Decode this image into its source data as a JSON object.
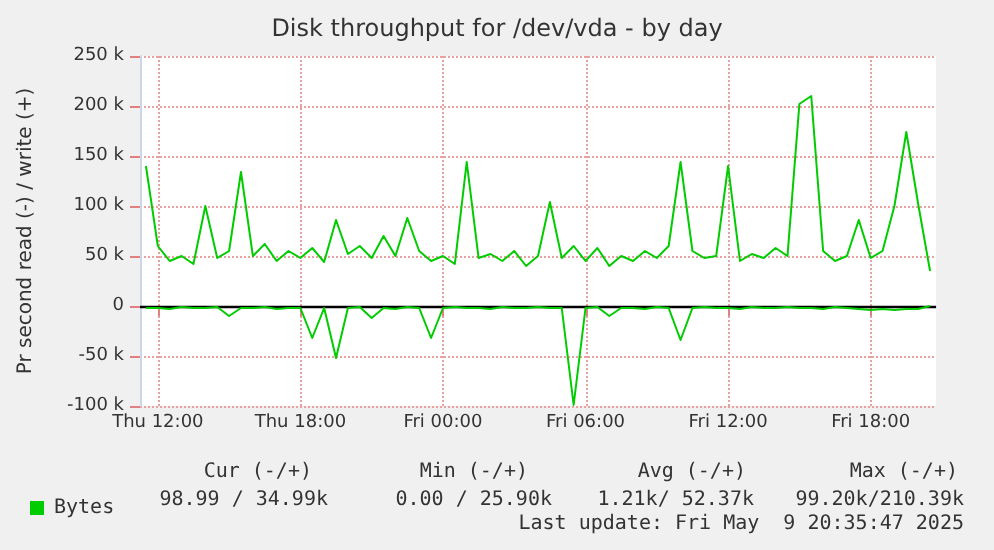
{
  "chart_data": {
    "type": "line",
    "title": "Disk throughput for /dev/vda - by day",
    "ylabel": "Pr second read (-) / write (+)",
    "x": [
      "2025-05-08T11:30",
      "2025-05-08T12:00",
      "2025-05-08T12:30",
      "2025-05-08T13:00",
      "2025-05-08T13:30",
      "2025-05-08T14:00",
      "2025-05-08T14:30",
      "2025-05-08T15:00",
      "2025-05-08T15:30",
      "2025-05-08T16:00",
      "2025-05-08T16:30",
      "2025-05-08T17:00",
      "2025-05-08T17:30",
      "2025-05-08T18:00",
      "2025-05-08T18:30",
      "2025-05-08T19:00",
      "2025-05-08T19:30",
      "2025-05-08T20:00",
      "2025-05-08T20:30",
      "2025-05-08T21:00",
      "2025-05-08T21:30",
      "2025-05-08T22:00",
      "2025-05-08T22:30",
      "2025-05-08T23:00",
      "2025-05-08T23:30",
      "2025-05-09T00:00",
      "2025-05-09T00:30",
      "2025-05-09T01:00",
      "2025-05-09T01:30",
      "2025-05-09T02:00",
      "2025-05-09T02:30",
      "2025-05-09T03:00",
      "2025-05-09T03:30",
      "2025-05-09T04:00",
      "2025-05-09T04:30",
      "2025-05-09T05:00",
      "2025-05-09T05:30",
      "2025-05-09T06:00",
      "2025-05-09T06:30",
      "2025-05-09T07:00",
      "2025-05-09T07:30",
      "2025-05-09T08:00",
      "2025-05-09T08:30",
      "2025-05-09T09:00",
      "2025-05-09T09:30",
      "2025-05-09T10:00",
      "2025-05-09T10:30",
      "2025-05-09T11:00",
      "2025-05-09T11:30",
      "2025-05-09T12:00",
      "2025-05-09T12:30",
      "2025-05-09T13:00",
      "2025-05-09T13:30",
      "2025-05-09T14:00",
      "2025-05-09T14:30",
      "2025-05-09T15:00",
      "2025-05-09T15:30",
      "2025-05-09T16:00",
      "2025-05-09T16:30",
      "2025-05-09T17:00",
      "2025-05-09T17:30",
      "2025-05-09T18:00",
      "2025-05-09T18:30",
      "2025-05-09T19:00",
      "2025-05-09T19:30",
      "2025-05-09T20:00",
      "2025-05-09T20:30"
    ],
    "series": [
      {
        "name": "Bytes",
        "color": "#00cc00",
        "values": [
          140000,
          60000,
          45000,
          50000,
          42000,
          100000,
          48000,
          55000,
          134000,
          50000,
          62000,
          45000,
          55000,
          48000,
          58000,
          44000,
          86000,
          52000,
          60000,
          48000,
          70000,
          50000,
          88000,
          55000,
          45000,
          50000,
          42000,
          144000,
          48000,
          52000,
          45000,
          55000,
          40000,
          50000,
          104000,
          48000,
          60000,
          45000,
          58000,
          40000,
          50000,
          45000,
          55000,
          48000,
          60000,
          144000,
          55000,
          48000,
          50000,
          140000,
          45000,
          52000,
          48000,
          58000,
          50000,
          202000,
          210000,
          55000,
          45000,
          50000,
          86000,
          48000,
          55000,
          100000,
          174000,
          102000,
          35000
        ]
      },
      {
        "color": "#00cc00",
        "values": [
          -2000,
          -2000,
          -3000,
          -1000,
          -2000,
          -2000,
          -1000,
          -10000,
          -2000,
          -2000,
          -1000,
          -3000,
          -2000,
          -2000,
          -32000,
          -2000,
          -52000,
          -2000,
          -1000,
          -12000,
          -2000,
          -3000,
          -1000,
          -2000,
          -32000,
          -2000,
          -1000,
          -2000,
          -2000,
          -3000,
          -1000,
          -2000,
          -2000,
          -1000,
          -2000,
          -2000,
          -99000,
          -2000,
          -1000,
          -10000,
          -2000,
          -2000,
          -3000,
          -1000,
          -2000,
          -34000,
          -2000,
          -1000,
          -2000,
          -2000,
          -3000,
          -1000,
          -2000,
          -2000,
          -1000,
          -2000,
          -2000,
          -3000,
          -1000,
          -2000,
          -3000,
          -4000,
          -3000,
          -4000,
          -3000,
          -3000,
          0
        ]
      }
    ],
    "xlim": [
      "2025-05-08T11:15",
      "2025-05-09T20:45"
    ],
    "xticks": [
      {
        "value": "2025-05-08T12:00",
        "label": "Thu 12:00"
      },
      {
        "value": "2025-05-08T18:00",
        "label": "Thu 18:00"
      },
      {
        "value": "2025-05-09T00:00",
        "label": "Fri 00:00"
      },
      {
        "value": "2025-05-09T06:00",
        "label": "Fri 06:00"
      },
      {
        "value": "2025-05-09T12:00",
        "label": "Fri 12:00"
      },
      {
        "value": "2025-05-09T18:00",
        "label": "Fri 18:00"
      }
    ],
    "ylim": [
      -100000,
      250000
    ],
    "yticks": [
      {
        "value": -100000,
        "label": "-100 k"
      },
      {
        "value": -50000,
        "label": "-50 k"
      },
      0,
      {
        "value": 50000,
        "label": "50 k"
      },
      {
        "value": 100000,
        "label": "100 k"
      },
      {
        "value": 150000,
        "label": "150 k"
      },
      {
        "value": 200000,
        "label": "200 k"
      },
      {
        "value": 250000,
        "label": "250 k"
      }
    ],
    "ref_lines": [
      {
        "axis": "y",
        "value": 0,
        "color": "#000000"
      }
    ],
    "grid": true,
    "legend": "bottom left",
    "marker": "none",
    "line_style": "solid",
    "annotations": [
      "Cur (-/+)",
      "Min (-/+)",
      "Avg (-/+)",
      "Max (-/+)",
      "98.99 / 34.99k",
      "0.00 / 25.90k",
      "1.21k/ 52.37k",
      "99.20k/210.39k",
      "Last update: Fri May  9 20:35:47 2025"
    ]
  }
}
